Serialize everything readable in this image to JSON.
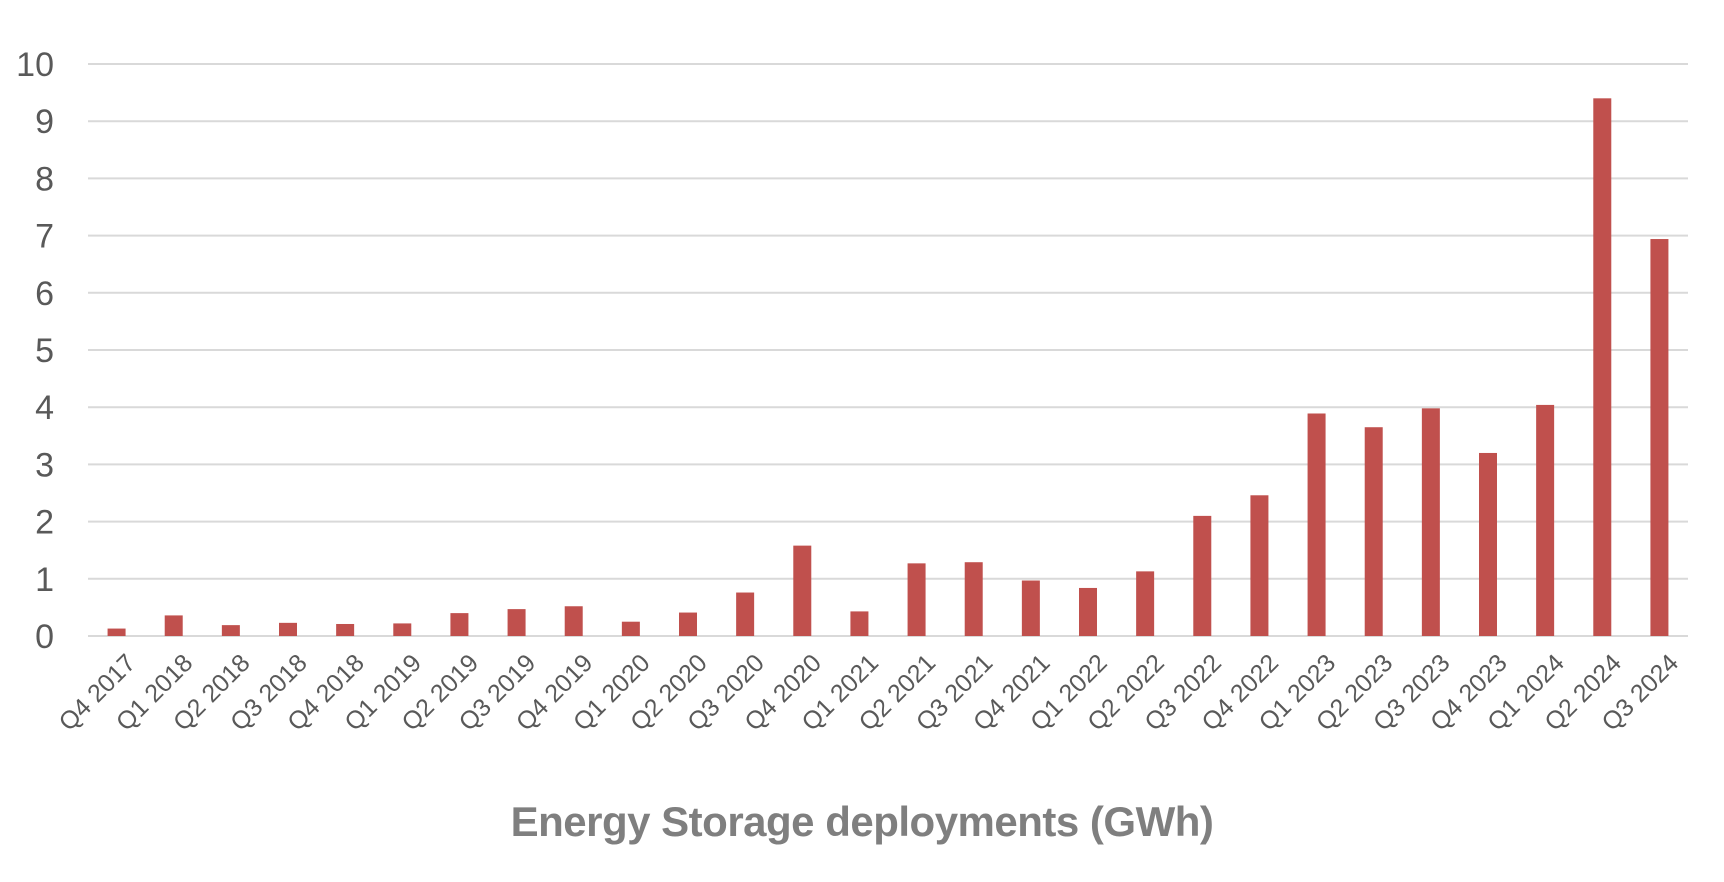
{
  "chart_data": {
    "type": "bar",
    "xlabel": "Energy Storage deployments (GWh)",
    "categories": [
      "Q4 2017",
      "Q1 2018",
      "Q2 2018",
      "Q3 2018",
      "Q4 2018",
      "Q1 2019",
      "Q2 2019",
      "Q3 2019",
      "Q4 2019",
      "Q1 2020",
      "Q2 2020",
      "Q3 2020",
      "Q4 2020",
      "Q1 2021",
      "Q2 2021",
      "Q3 2021",
      "Q4 2021",
      "Q1 2022",
      "Q2 2022",
      "Q3 2022",
      "Q4 2022",
      "Q1 2023",
      "Q2 2023",
      "Q3 2023",
      "Q4 2023",
      "Q1 2024",
      "Q2 2024",
      "Q3 2024"
    ],
    "values": [
      0.13,
      0.36,
      0.19,
      0.23,
      0.21,
      0.22,
      0.4,
      0.47,
      0.52,
      0.25,
      0.41,
      0.76,
      1.58,
      0.43,
      1.27,
      1.29,
      0.97,
      0.84,
      1.13,
      2.1,
      2.46,
      3.89,
      3.65,
      3.98,
      3.2,
      4.04,
      9.4,
      6.94
    ],
    "ylim": [
      0,
      10
    ],
    "yticks": [
      0,
      1,
      2,
      3,
      4,
      5,
      6,
      7,
      8,
      9,
      10
    ],
    "grid": true,
    "colors": {
      "bar": "#c0504d",
      "grid": "#d9d9d9",
      "tick_text": "#595959",
      "axis_title": "#7f7f7f"
    }
  }
}
